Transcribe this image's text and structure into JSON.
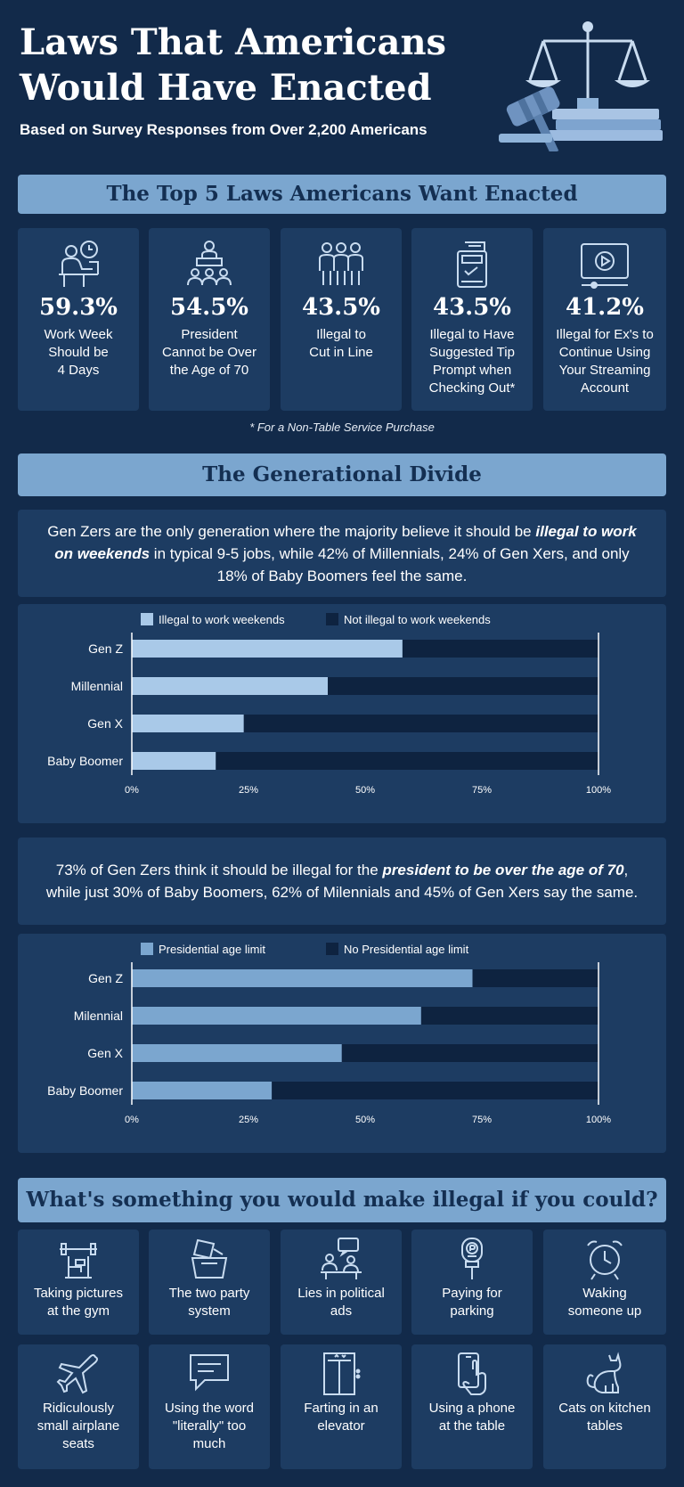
{
  "header": {
    "title_line1": "Laws That Americans",
    "title_line2": "Would Have Enacted",
    "subtitle": "Based on Survey Responses from Over 2,200 Americans",
    "hero_icon": "scales-gavel-books-icon"
  },
  "top5": {
    "heading": "The Top 5 Laws Americans Want Enacted",
    "items": [
      {
        "icon": "desk-worker-clock-icon",
        "pct": "59.3%",
        "label": [
          "Work Week",
          "Should be",
          "4 Days"
        ]
      },
      {
        "icon": "podium-audience-icon",
        "pct": "54.5%",
        "label": [
          "President",
          "Cannot be Over",
          "the Age of 70"
        ]
      },
      {
        "icon": "people-line-icon",
        "pct": "43.5%",
        "label": [
          "Illegal to",
          "Cut in Line"
        ]
      },
      {
        "icon": "payment-terminal-icon",
        "pct": "43.5%",
        "label": [
          "Illegal to Have",
          "Suggested Tip",
          "Prompt when",
          "Checking Out*"
        ]
      },
      {
        "icon": "video-player-icon",
        "pct": "41.2%",
        "label": [
          "Illegal for Ex's to",
          "Continue Using",
          "Your Streaming",
          "Account"
        ]
      }
    ],
    "footnote": "*  For a Non-Table Service Purchase"
  },
  "generational": {
    "heading": "The Generational Divide",
    "quote1": {
      "pre": "Gen Zers are the only generation where the majority believe it should be",
      "em": "illegal to work on weekends",
      "post": "in typical 9-5 jobs, while 42% of Millennials, 24% of Gen Xers, and only 18% of Baby Boomers feel the same."
    },
    "quote2": {
      "pre": "73% of Gen Zers think it should be illegal for the",
      "em": "president to be over the age of 70",
      "post": ", while just 30% of Baby Boomers, 62% of Milennials and 45% of Gen Xers say the same."
    }
  },
  "chart_data": [
    {
      "type": "bar",
      "orientation": "horizontal",
      "stacked": true,
      "categories": [
        "Gen Z",
        "Millennial",
        "Gen X",
        "Baby Boomer"
      ],
      "series": [
        {
          "name": "Illegal to work weekends",
          "values": [
            58,
            42,
            24,
            18
          ],
          "color": "#a9c9e8"
        },
        {
          "name": "Not illegal to work weekends",
          "values": [
            42,
            58,
            76,
            82
          ],
          "color": "#0e2340"
        }
      ],
      "ticks": [
        "0%",
        "25%",
        "50%",
        "75%",
        "100%"
      ],
      "xlim": [
        0,
        100
      ],
      "legend": "top"
    },
    {
      "type": "bar",
      "orientation": "horizontal",
      "stacked": true,
      "categories": [
        "Gen Z",
        "Milennial",
        "Gen X",
        "Baby Boomer"
      ],
      "series": [
        {
          "name": "Presidential age limit",
          "values": [
            73,
            62,
            45,
            30
          ],
          "color": "#7ba6cf"
        },
        {
          "name": "No Presidential age limit",
          "values": [
            27,
            38,
            55,
            70
          ],
          "color": "#0e2340"
        }
      ],
      "ticks": [
        "0%",
        "25%",
        "50%",
        "75%",
        "100%"
      ],
      "xlim": [
        0,
        100
      ],
      "legend": "top"
    }
  ],
  "illegal": {
    "heading": "What's something you would make illegal if you could?",
    "items": [
      {
        "icon": "gym-weights-icon",
        "label": [
          "Taking pictures",
          "at the gym"
        ]
      },
      {
        "icon": "ballot-box-icon",
        "label": [
          "The two party",
          "system"
        ]
      },
      {
        "icon": "debate-speech-icon",
        "label": [
          "Lies in political",
          "ads"
        ]
      },
      {
        "icon": "parking-meter-icon",
        "label": [
          "Paying for",
          "parking"
        ]
      },
      {
        "icon": "alarm-clock-icon",
        "label": [
          "Waking",
          "someone up"
        ]
      },
      {
        "icon": "airplane-icon",
        "label": [
          "Ridiculously",
          "small airplane",
          "seats"
        ]
      },
      {
        "icon": "speech-bubble-icon",
        "label": [
          "Using the word",
          "\"literally\" too",
          "much"
        ]
      },
      {
        "icon": "elevator-icon",
        "label": [
          "Farting in an",
          "elevator"
        ]
      },
      {
        "icon": "phone-hand-icon",
        "label": [
          "Using a phone",
          "at the table"
        ]
      },
      {
        "icon": "cat-icon",
        "label": [
          "Cats on kitchen",
          "tables"
        ]
      }
    ]
  }
}
